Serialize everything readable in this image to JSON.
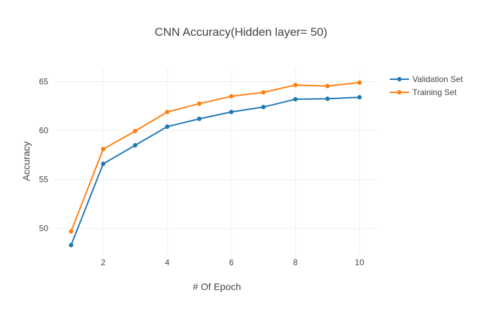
{
  "chart_data": {
    "type": "line",
    "title": "CNN Accuracy(Hidden layer= 50)",
    "xlabel": "# Of Epoch",
    "ylabel": "Accuracy",
    "xlim": [
      0.5,
      10.6
    ],
    "ylim": [
      47.3,
      66.3
    ],
    "xticks": [
      2,
      4,
      6,
      8,
      10
    ],
    "yticks": [
      50,
      55,
      60,
      65
    ],
    "grid": true,
    "legend_position": "top-right",
    "x": [
      1,
      2,
      3,
      4,
      5,
      6,
      7,
      8,
      9,
      10
    ],
    "series": [
      {
        "name": "Validation Set",
        "color": "#1f77b4",
        "values": [
          48.3,
          56.6,
          58.5,
          60.4,
          61.2,
          61.9,
          62.4,
          63.2,
          63.25,
          63.4
        ]
      },
      {
        "name": "Training Set",
        "color": "#ff7f0e",
        "values": [
          49.7,
          58.1,
          59.95,
          61.9,
          62.75,
          63.5,
          63.9,
          64.65,
          64.55,
          64.9
        ]
      }
    ]
  }
}
